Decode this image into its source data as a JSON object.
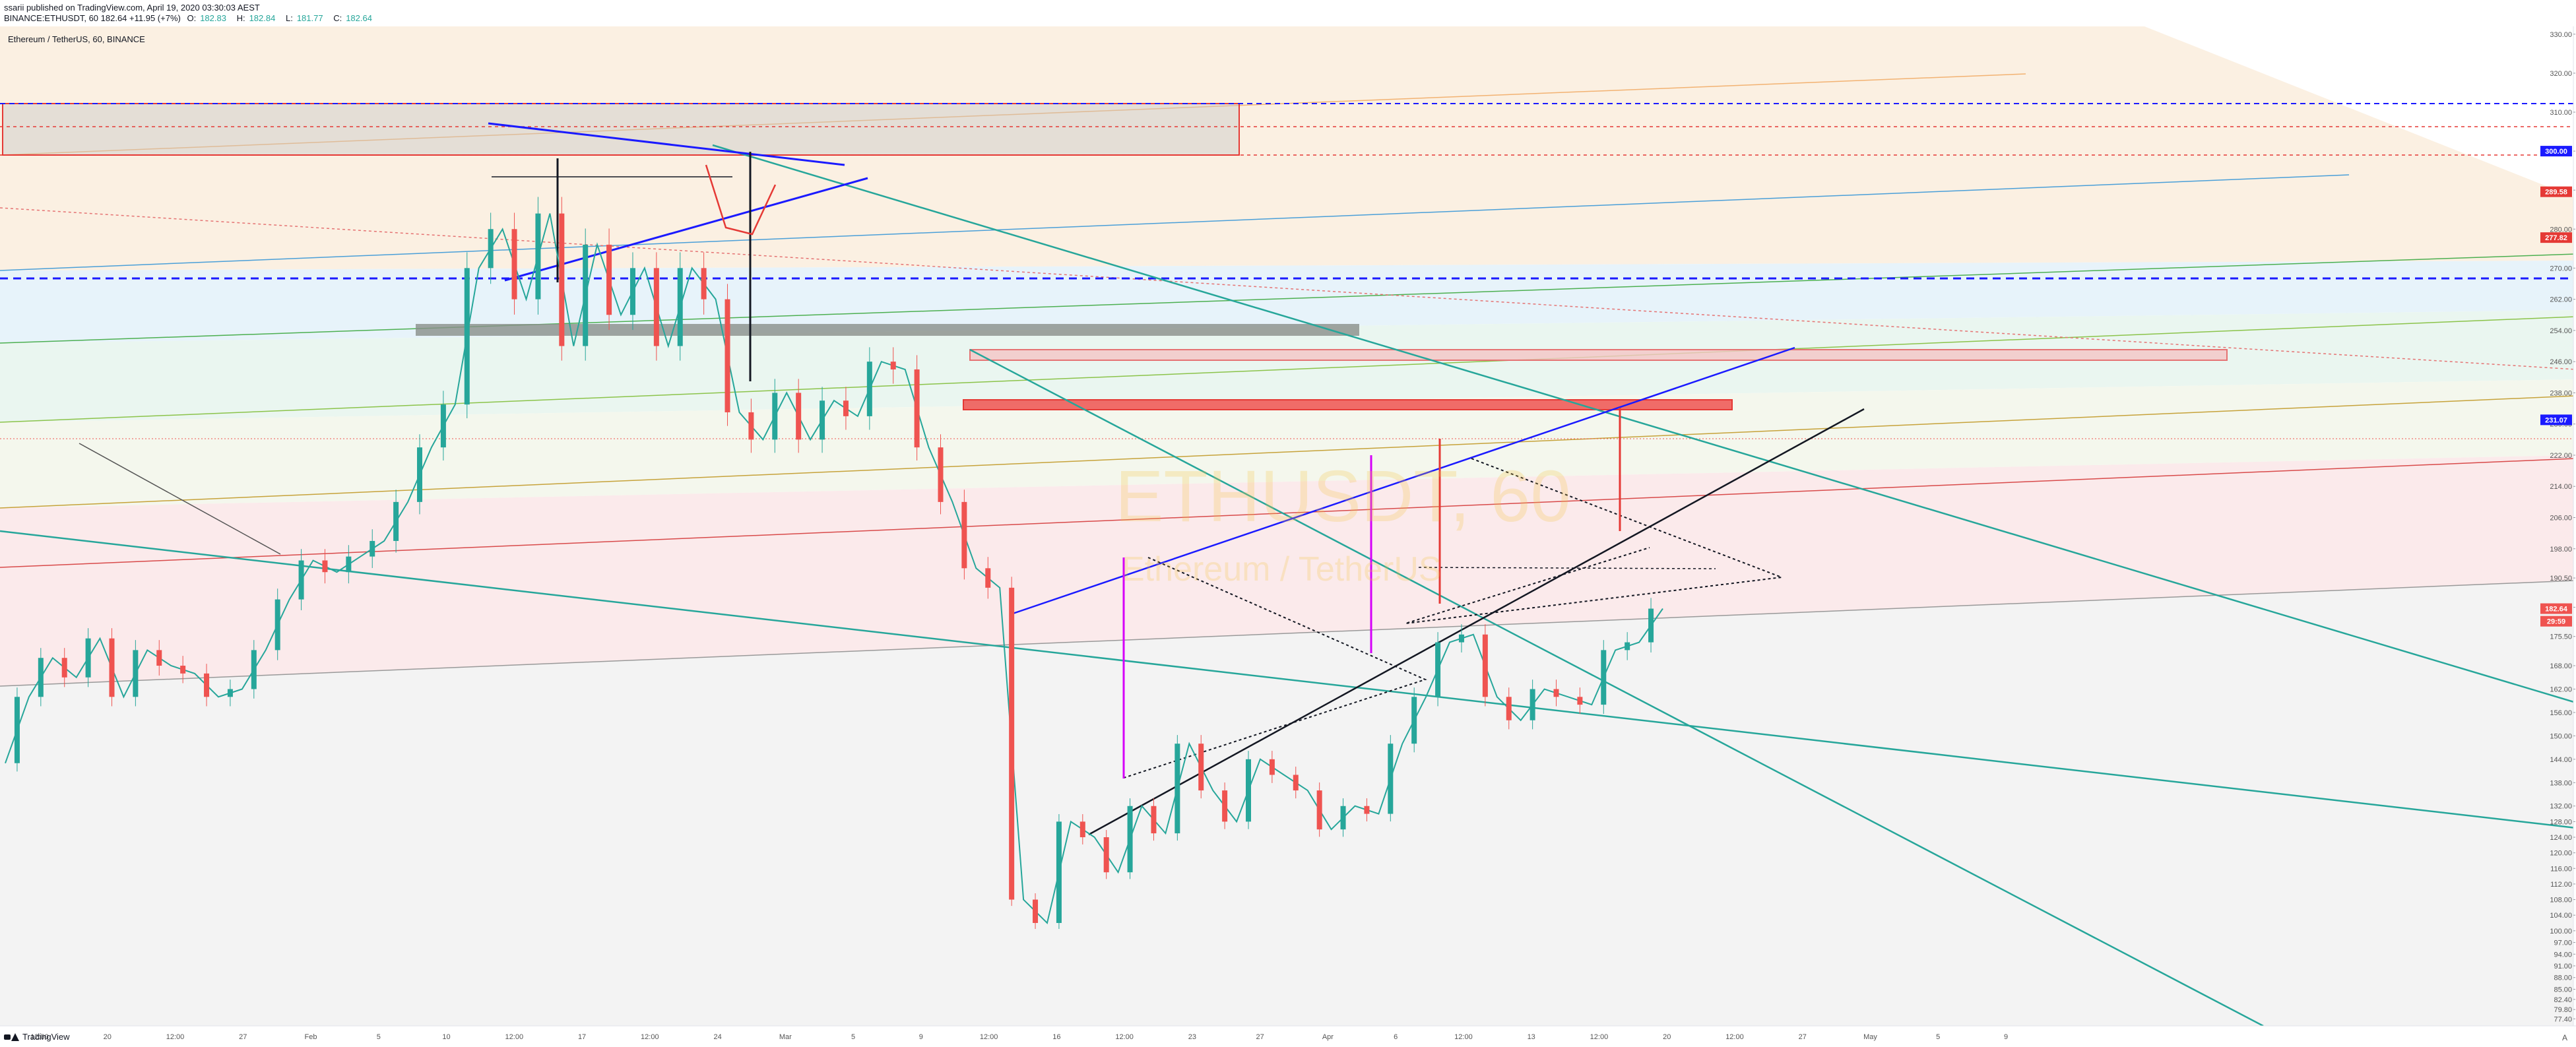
{
  "header": {
    "publisher_line": "ssarii published on TradingView.com, April 19, 2020 03:30:03 AEST",
    "symbol_line": "BINANCE:ETHUSDT, 60  182.64  +11.95 (+7%)",
    "ohlc": [
      {
        "label": "O:",
        "value": "182.83"
      },
      {
        "label": "H:",
        "value": "182.84"
      },
      {
        "label": "L:",
        "value": "181.77"
      },
      {
        "label": "C:",
        "value": "182.64"
      }
    ]
  },
  "chart_title": "Ethereum / TetherUS, 60, BINANCE",
  "footer": {
    "brand": "TradingView"
  },
  "chart_data": {
    "type": "line",
    "chart_style": "candlestick",
    "symbol": "ETHUSDT",
    "watermark": {
      "symbol": "ETHUSDT, 60",
      "name": "Ethereum / TetherUS"
    },
    "y_axis": {
      "ylim": [
        75.6,
        332.0
      ],
      "ticks": [
        330.0,
        320.0,
        310.0,
        300.0,
        290.0,
        280.0,
        270.0,
        262.0,
        254.0,
        246.0,
        238.0,
        230.0,
        222.0,
        214.0,
        206.0,
        198.0,
        190.5,
        183.0,
        175.5,
        168.0,
        162.0,
        156.0,
        150.0,
        144.0,
        138.0,
        132.0,
        128.0,
        124.0,
        120.0,
        116.0,
        112.0,
        108.0,
        104.0,
        100.0,
        97.0,
        94.0,
        91.0,
        88.0,
        85.0,
        82.4,
        79.8,
        77.4
      ]
    },
    "x_axis": {
      "ticks": [
        "12:00",
        "20",
        "12:00",
        "27",
        "Feb",
        "5",
        "10",
        "12:00",
        "17",
        "12:00",
        "24",
        "Mar",
        "5",
        "9",
        "12:00",
        "16",
        "12:00",
        "23",
        "27",
        "Apr",
        "6",
        "12:00",
        "13",
        "12:00",
        "20",
        "12:00",
        "27",
        "May",
        "5",
        "9"
      ]
    },
    "price_labels": [
      {
        "value": "300.00",
        "price": 300.0,
        "color": "#1a1aff"
      },
      {
        "value": "289.58",
        "price": 289.58,
        "color": "#e53935"
      },
      {
        "value": "277.82",
        "price": 277.82,
        "color": "#e53935"
      },
      {
        "value": "231.07",
        "price": 231.07,
        "color": "#1a1aff"
      },
      {
        "value": "182.64",
        "price": 182.64,
        "color": "#ef5350"
      },
      {
        "value": "29:59",
        "price": 179.4,
        "color": "#ef5350"
      }
    ],
    "series": [
      {
        "name": "ETHUSDT",
        "values": [
          143,
          160,
          170,
          165,
          175,
          160,
          172,
          168,
          166,
          160,
          162,
          172,
          185,
          195,
          192,
          196,
          200,
          210,
          224,
          235,
          270,
          280,
          262,
          284,
          250,
          276,
          258,
          270,
          250,
          270,
          262,
          233,
          226,
          238,
          226,
          236,
          232,
          246,
          244,
          224,
          210,
          193,
          188,
          108,
          102,
          128,
          124,
          115,
          132,
          125,
          148,
          136,
          128,
          144,
          140,
          136,
          126,
          132,
          130,
          148,
          160,
          174,
          176,
          160,
          154,
          162,
          160,
          158,
          172,
          174,
          182.64
        ],
        "color": "#26a69a"
      }
    ]
  }
}
